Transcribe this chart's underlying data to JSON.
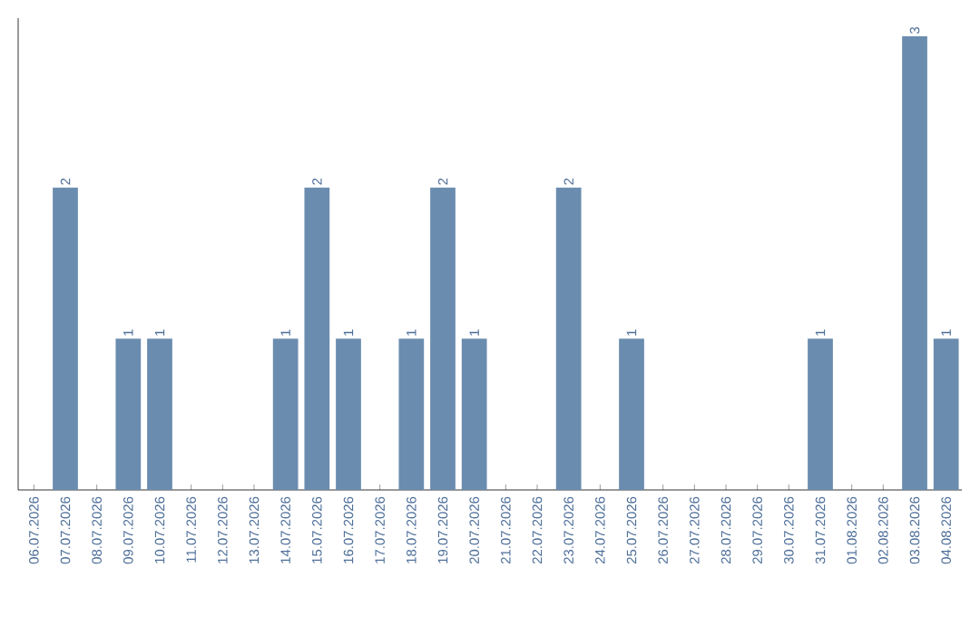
{
  "chart_data": {
    "type": "bar",
    "color": "#6a8caf",
    "categories": [
      "06.07.2026",
      "07.07.2026",
      "08.07.2026",
      "09.07.2026",
      "10.07.2026",
      "11.07.2026",
      "12.07.2026",
      "13.07.2026",
      "14.07.2026",
      "15.07.2026",
      "16.07.2026",
      "17.07.2026",
      "18.07.2026",
      "19.07.2026",
      "20.07.2026",
      "21.07.2026",
      "22.07.2026",
      "23.07.2026",
      "24.07.2026",
      "25.07.2026",
      "26.07.2026",
      "27.07.2026",
      "28.07.2026",
      "29.07.2026",
      "30.07.2026",
      "31.07.2026",
      "01.08.2026",
      "02.08.2026",
      "03.08.2026",
      "04.08.2026"
    ],
    "values": [
      0,
      2,
      0,
      1,
      1,
      0,
      0,
      0,
      1,
      2,
      1,
      0,
      1,
      2,
      1,
      0,
      0,
      2,
      0,
      1,
      0,
      0,
      0,
      0,
      0,
      1,
      0,
      0,
      3,
      1
    ],
    "value_labels": [
      null,
      "2",
      null,
      "1",
      "1",
      null,
      null,
      null,
      "1",
      "2",
      "1",
      null,
      "1",
      "2",
      "1",
      null,
      null,
      "2",
      null,
      "1",
      null,
      null,
      null,
      null,
      null,
      "1",
      null,
      null,
      "3",
      "1"
    ],
    "grid": false
  }
}
